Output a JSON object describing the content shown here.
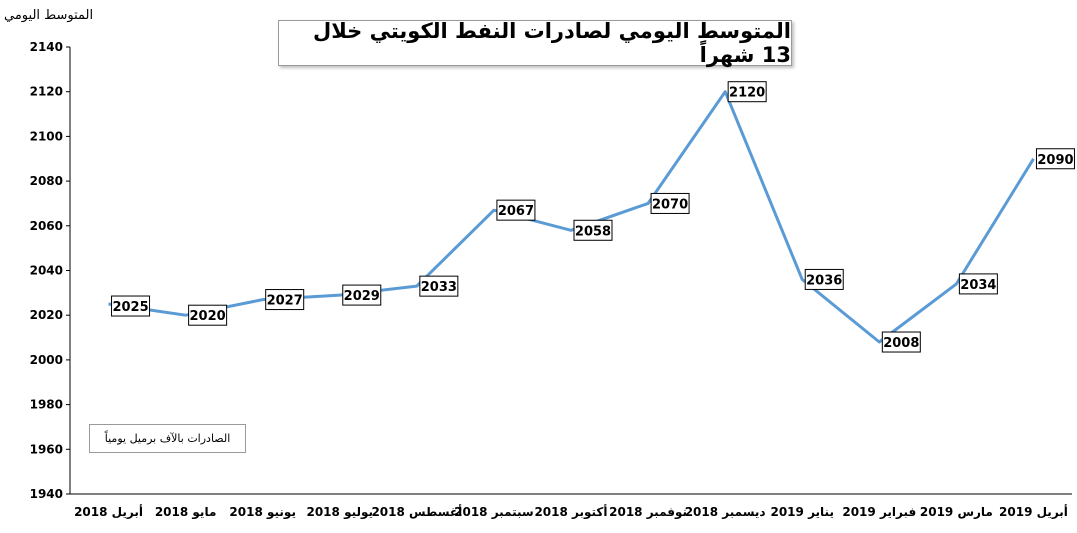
{
  "y_axis_title": "المتوسط اليومي",
  "note": "الصادرات بالآف برميل يومياً",
  "chart_data": {
    "type": "line",
    "title": "المتوسط اليومي لصادرات النفط الكويتي خلال 13 شهراً",
    "ylabel": "المتوسط اليومي",
    "xlabel": "",
    "ylim": [
      1940,
      2140
    ],
    "yticks": [
      1940,
      1960,
      1980,
      2000,
      2020,
      2040,
      2060,
      2080,
      2100,
      2120,
      2140
    ],
    "categories": [
      "أبريل 2018",
      "مايو 2018",
      "يونيو 2018",
      "يوليو 2018",
      "أغسطس 2018",
      "سبتمبر 2018",
      "أكتوبر 2018",
      "نوفمبر 2018",
      "ديسمبر 2018",
      "يناير 2019",
      "فبراير 2019",
      "مارس 2019",
      "أبريل 2019"
    ],
    "series": [
      {
        "values": [
          2025,
          2020,
          2027,
          2029,
          2033,
          2067,
          2058,
          2070,
          2120,
          2036,
          2008,
          2034,
          2090
        ]
      }
    ],
    "line_color": "#5b9bd5",
    "grid": false,
    "legend": "none"
  }
}
